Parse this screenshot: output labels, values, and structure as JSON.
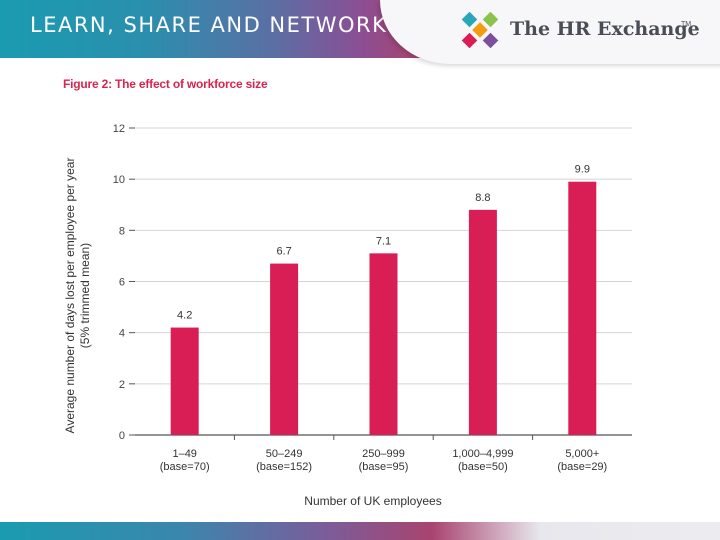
{
  "header": {
    "tagline": "LEARN, SHARE AND NETWORK",
    "brand": "The HR Exchange",
    "trademark": "TM",
    "logo_icon": "hr-exchange-x-logo"
  },
  "colors": {
    "bar": "#d81e55",
    "title": "#d8254f",
    "axis": "#555555",
    "grid": "#d4d4d4"
  },
  "chart_data": {
    "type": "bar",
    "title": "Figure 2: The effect of workforce size",
    "categories": [
      [
        "1–49",
        "(base=70)"
      ],
      [
        "50–249",
        "(base=152)"
      ],
      [
        "250–999",
        "(base=95)"
      ],
      [
        "1,000–4,999",
        "(base=50)"
      ],
      [
        "5,000+",
        "(base=29)"
      ]
    ],
    "values": [
      4.2,
      6.7,
      7.1,
      8.8,
      9.9
    ],
    "data_labels": [
      "4.2",
      "6.7",
      "7.1",
      "8.8",
      "9.9"
    ],
    "xlabel": "Number of UK employees",
    "ylabel": [
      "Average number of days lost per employee per year",
      "(5% trimmed mean)"
    ],
    "ylim": [
      0,
      12
    ],
    "yticks": [
      0,
      2,
      4,
      6,
      8,
      10,
      12
    ],
    "grid": true
  }
}
